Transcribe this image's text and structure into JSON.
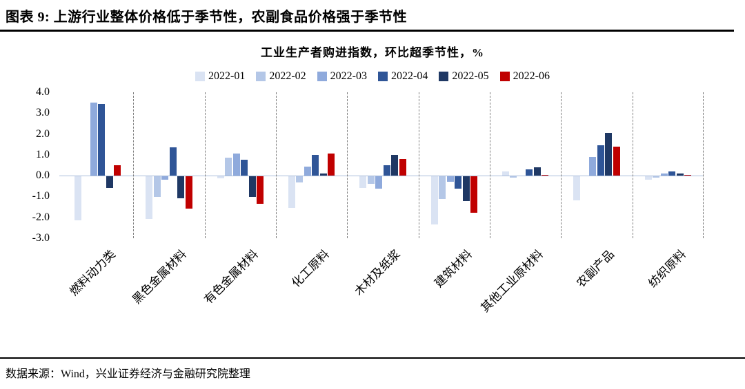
{
  "header": {
    "title": "图表 9:  上游行业整体价格低于季节性，农副食品价格强于季节性"
  },
  "footer": {
    "source": "数据来源：Wind，兴业证券经济与金融研究院整理"
  },
  "chart_data": {
    "type": "bar",
    "title": "工业生产者购进指数，环比超季节性，%",
    "categories": [
      "燃料动力类",
      "黑色金属材料",
      "有色金属材料",
      "化工原料",
      "木材及纸浆",
      "建筑材料",
      "其他工业原材料",
      "农副产品",
      "纺织原料"
    ],
    "series": [
      {
        "name": "2022-01",
        "color": "#dae3f3",
        "values": [
          -2.1,
          -2.05,
          -0.1,
          -1.5,
          -0.55,
          -2.3,
          0.2,
          -1.15,
          -0.15
        ]
      },
      {
        "name": "2022-02",
        "color": "#b4c7e7",
        "values": [
          0.0,
          -1.0,
          0.85,
          -0.3,
          -0.35,
          -1.1,
          -0.05,
          0.0,
          -0.05
        ]
      },
      {
        "name": "2022-03",
        "color": "#8faadc",
        "values": [
          3.5,
          -0.15,
          1.05,
          0.45,
          -0.6,
          -0.25,
          0.0,
          0.9,
          0.1
        ]
      },
      {
        "name": "2022-04",
        "color": "#2f5597",
        "values": [
          3.45,
          1.35,
          0.75,
          1.0,
          0.5,
          -0.6,
          0.3,
          1.45,
          0.2
        ]
      },
      {
        "name": "2022-05",
        "color": "#1f3864",
        "values": [
          -0.55,
          -1.05,
          -1.0,
          0.1,
          1.0,
          -1.2,
          0.4,
          2.05,
          0.1
        ]
      },
      {
        "name": "2022-06",
        "color": "#c00000",
        "values": [
          0.5,
          -1.55,
          -1.3,
          1.05,
          0.8,
          -1.75,
          0.05,
          1.4,
          0.05
        ]
      }
    ],
    "ylim": [
      -3.0,
      4.0
    ],
    "yticks": [
      4.0,
      3.0,
      2.0,
      1.0,
      0.0,
      -1.0,
      -2.0,
      -3.0
    ],
    "ylabel": "",
    "xlabel": "",
    "grid": false,
    "legend_position": "top"
  }
}
